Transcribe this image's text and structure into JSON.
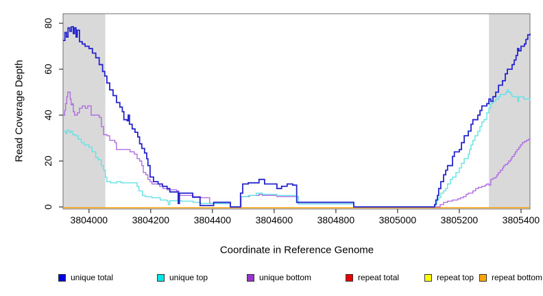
{
  "y_axis": {
    "label": "Read Coverage Depth",
    "ticks": [
      0,
      20,
      40,
      60,
      80
    ],
    "range": [
      0,
      84.2
    ]
  },
  "x_axis": {
    "label": "Coordinate in Reference Genome",
    "ticks": [
      3804000,
      3804200,
      3804400,
      3804600,
      3804800,
      3805000,
      3805200,
      3805400
    ],
    "range": [
      3803916,
      3805429
    ]
  },
  "shaded_regions": {
    "color": "#d9d9d9",
    "bands": [
      [
        3803916,
        3804053
      ],
      [
        3805296,
        3805429
      ]
    ]
  },
  "legend": {
    "items": [
      {
        "label": "unique total",
        "swatch": "#0000e0",
        "line": "#2424cf"
      },
      {
        "label": "unique top",
        "swatch": "#00e6e6",
        "line": "#62e2e6"
      },
      {
        "label": "unique bottom",
        "swatch": "#9a32cd",
        "line": "#b06ce2"
      },
      {
        "label": "repeat total",
        "swatch": "#e60000",
        "line": "#dd0000"
      },
      {
        "label": "repeat top",
        "swatch": "#ffff00",
        "line": "#ffee00"
      },
      {
        "label": "repeat bottom",
        "swatch": "#ffa500",
        "line": "#ff9d00"
      }
    ]
  },
  "chart_data": {
    "type": "line",
    "step": true,
    "title": "",
    "xlabel": "Coordinate in Reference Genome",
    "ylabel": "Read Coverage Depth",
    "ylim": [
      0,
      84
    ],
    "xlim": [
      3803916,
      3805429
    ],
    "grid": false,
    "legend_position": "bottom",
    "draw_order": [
      "repeat total",
      "repeat top",
      "repeat bottom",
      "unique bottom",
      "unique top",
      "unique total"
    ],
    "series": [
      {
        "name": "unique total",
        "color": "#2424cf",
        "width": 1.8,
        "points": [
          [
            3803916,
            72.5
          ],
          [
            3803922,
            76
          ],
          [
            3803927,
            74
          ],
          [
            3803932,
            78
          ],
          [
            3803938,
            76.5
          ],
          [
            3803943,
            78.5
          ],
          [
            3803949,
            75.5
          ],
          [
            3803953,
            78
          ],
          [
            3803958,
            74
          ],
          [
            3803962,
            77
          ],
          [
            3803969,
            72
          ],
          [
            3803978,
            71
          ],
          [
            3803987,
            70
          ],
          [
            3804000,
            69
          ],
          [
            3804011,
            67
          ],
          [
            3804022,
            65
          ],
          [
            3804033,
            62
          ],
          [
            3804044,
            59
          ],
          [
            3804051,
            57
          ],
          [
            3804058,
            54
          ],
          [
            3804067,
            51
          ],
          [
            3804078,
            48.5
          ],
          [
            3804089,
            45.5
          ],
          [
            3804100,
            43.5
          ],
          [
            3804108,
            41.5
          ],
          [
            3804113,
            38
          ],
          [
            3804124,
            37.5
          ],
          [
            3804127,
            40
          ],
          [
            3804131,
            36
          ],
          [
            3804140,
            34
          ],
          [
            3804149,
            32.5
          ],
          [
            3804158,
            30.5
          ],
          [
            3804164,
            27.5
          ],
          [
            3804171,
            25.5
          ],
          [
            3804180,
            23.5
          ],
          [
            3804187,
            21
          ],
          [
            3804191,
            18
          ],
          [
            3804198,
            13
          ],
          [
            3804209,
            11
          ],
          [
            3804224,
            10
          ],
          [
            3804238,
            9
          ],
          [
            3804253,
            8
          ],
          [
            3804262,
            6.5
          ],
          [
            3804289,
            1.5
          ],
          [
            3804293,
            6
          ],
          [
            3804336,
            4.2
          ],
          [
            3804360,
            0.6
          ],
          [
            3804404,
            2
          ],
          [
            3804458,
            0
          ],
          [
            3804491,
            6
          ],
          [
            3804498,
            10
          ],
          [
            3804516,
            10.5
          ],
          [
            3804551,
            12
          ],
          [
            3804569,
            10
          ],
          [
            3804609,
            8
          ],
          [
            3804624,
            9
          ],
          [
            3804642,
            10
          ],
          [
            3804660,
            9.5
          ],
          [
            3804673,
            2
          ],
          [
            3804858,
            0
          ],
          [
            3805120,
            1
          ],
          [
            3805124,
            3
          ],
          [
            3805129,
            5
          ],
          [
            3805133,
            8
          ],
          [
            3805140,
            11
          ],
          [
            3805149,
            14
          ],
          [
            3805156,
            16
          ],
          [
            3805162,
            18
          ],
          [
            3805178,
            22
          ],
          [
            3805184,
            24
          ],
          [
            3805200,
            25
          ],
          [
            3805207,
            28
          ],
          [
            3805216,
            31
          ],
          [
            3805229,
            33
          ],
          [
            3805238,
            36
          ],
          [
            3805244,
            38
          ],
          [
            3805260,
            40
          ],
          [
            3805267,
            42
          ],
          [
            3805273,
            44
          ],
          [
            3805289,
            45
          ],
          [
            3805296,
            47
          ],
          [
            3805302,
            46
          ],
          [
            3805309,
            48
          ],
          [
            3805318,
            50
          ],
          [
            3805327,
            53
          ],
          [
            3805340,
            55
          ],
          [
            3805349,
            58
          ],
          [
            3805356,
            60
          ],
          [
            3805371,
            62
          ],
          [
            3805378,
            64
          ],
          [
            3805384,
            66
          ],
          [
            3805389,
            69
          ],
          [
            3805393,
            68
          ],
          [
            3805400,
            70
          ],
          [
            3805411,
            71
          ],
          [
            3805416,
            73
          ],
          [
            3805422,
            75
          ],
          [
            3805429,
            75.5
          ]
        ]
      },
      {
        "name": "unique top",
        "color": "#62e2e6",
        "width": 1.4,
        "points": [
          [
            3803916,
            33
          ],
          [
            3803924,
            32
          ],
          [
            3803929,
            33.5
          ],
          [
            3803936,
            32.5
          ],
          [
            3803942,
            33
          ],
          [
            3803947,
            31.5
          ],
          [
            3803955,
            31
          ],
          [
            3803965,
            29.5
          ],
          [
            3803975,
            28
          ],
          [
            3803985,
            27
          ],
          [
            3804000,
            26
          ],
          [
            3804010,
            24
          ],
          [
            3804022,
            21.5
          ],
          [
            3804030,
            20.5
          ],
          [
            3804040,
            18
          ],
          [
            3804047,
            16
          ],
          [
            3804053,
            13
          ],
          [
            3804058,
            11
          ],
          [
            3804070,
            10.5
          ],
          [
            3804090,
            11
          ],
          [
            3804104,
            10.5
          ],
          [
            3804149,
            10.5
          ],
          [
            3804156,
            9
          ],
          [
            3804162,
            7
          ],
          [
            3804173,
            5
          ],
          [
            3804182,
            4.5
          ],
          [
            3804204,
            4
          ],
          [
            3804231,
            3
          ],
          [
            3804253,
            2.5
          ],
          [
            3804257,
            1
          ],
          [
            3804262,
            2.7
          ],
          [
            3804300,
            2.5
          ],
          [
            3804338,
            2
          ],
          [
            3804362,
            1.5
          ],
          [
            3804458,
            0
          ],
          [
            3804491,
            4.5
          ],
          [
            3804516,
            5
          ],
          [
            3804542,
            6
          ],
          [
            3804562,
            5.5
          ],
          [
            3804609,
            5
          ],
          [
            3804669,
            4.5
          ],
          [
            3804678,
            1.3
          ],
          [
            3804858,
            0
          ],
          [
            3805122,
            1
          ],
          [
            3805127,
            3
          ],
          [
            3805133,
            4
          ],
          [
            3805140,
            6
          ],
          [
            3805149,
            7
          ],
          [
            3805156,
            8
          ],
          [
            3805162,
            10
          ],
          [
            3805171,
            12
          ],
          [
            3805178,
            13
          ],
          [
            3805189,
            15
          ],
          [
            3805200,
            17
          ],
          [
            3805207,
            19
          ],
          [
            3805216,
            21
          ],
          [
            3805229,
            23
          ],
          [
            3805233,
            25
          ],
          [
            3805238,
            27
          ],
          [
            3805244,
            29
          ],
          [
            3805251,
            31
          ],
          [
            3805260,
            33
          ],
          [
            3805267,
            35
          ],
          [
            3805273,
            37
          ],
          [
            3805280,
            38
          ],
          [
            3805289,
            41
          ],
          [
            3805296,
            43
          ],
          [
            3805302,
            45
          ],
          [
            3805309,
            46
          ],
          [
            3805318,
            47
          ],
          [
            3805327,
            48
          ],
          [
            3805333,
            49
          ],
          [
            3805351,
            50
          ],
          [
            3805356,
            51
          ],
          [
            3805360,
            50
          ],
          [
            3805367,
            49
          ],
          [
            3805371,
            48
          ],
          [
            3805389,
            46
          ],
          [
            3805393,
            48
          ],
          [
            3805409,
            47
          ],
          [
            3805429,
            46.5
          ]
        ]
      },
      {
        "name": "unique bottom",
        "color": "#b06ce2",
        "width": 1.4,
        "points": [
          [
            3803916,
            40
          ],
          [
            3803921,
            42
          ],
          [
            3803924,
            45
          ],
          [
            3803928,
            48
          ],
          [
            3803931,
            50
          ],
          [
            3803939,
            47
          ],
          [
            3803942,
            44.5
          ],
          [
            3803946,
            45
          ],
          [
            3803949,
            41.5
          ],
          [
            3803953,
            40
          ],
          [
            3803962,
            41
          ],
          [
            3803969,
            43
          ],
          [
            3803978,
            44
          ],
          [
            3803988,
            43
          ],
          [
            3803996,
            44
          ],
          [
            3804007,
            40
          ],
          [
            3804033,
            39
          ],
          [
            3804040,
            35
          ],
          [
            3804047,
            31.5
          ],
          [
            3804058,
            31
          ],
          [
            3804067,
            29
          ],
          [
            3804084,
            28
          ],
          [
            3804089,
            25
          ],
          [
            3804124,
            25
          ],
          [
            3804133,
            24
          ],
          [
            3804147,
            23
          ],
          [
            3804156,
            21
          ],
          [
            3804164,
            20
          ],
          [
            3804171,
            18
          ],
          [
            3804176,
            15
          ],
          [
            3804184,
            14
          ],
          [
            3804191,
            12
          ],
          [
            3804198,
            11
          ],
          [
            3804204,
            10
          ],
          [
            3804229,
            9
          ],
          [
            3804240,
            8
          ],
          [
            3804253,
            7.5
          ],
          [
            3804284,
            7
          ],
          [
            3804291,
            5
          ],
          [
            3804338,
            4.5
          ],
          [
            3804362,
            4
          ],
          [
            3804391,
            1.5
          ],
          [
            3804458,
            0
          ],
          [
            3804493,
            4.5
          ],
          [
            3804520,
            5
          ],
          [
            3804551,
            5.5
          ],
          [
            3804562,
            5
          ],
          [
            3804609,
            4.5
          ],
          [
            3804678,
            1.3
          ],
          [
            3804858,
            0
          ],
          [
            3805138,
            1
          ],
          [
            3805149,
            2
          ],
          [
            3805162,
            2.5
          ],
          [
            3805178,
            3
          ],
          [
            3805195,
            3.5
          ],
          [
            3805204,
            4
          ],
          [
            3805213,
            4.5
          ],
          [
            3805222,
            5.5
          ],
          [
            3805229,
            6
          ],
          [
            3805244,
            7
          ],
          [
            3805253,
            8
          ],
          [
            3805262,
            8.5
          ],
          [
            3805273,
            9
          ],
          [
            3805284,
            9.5
          ],
          [
            3805289,
            10
          ],
          [
            3805296,
            9.5
          ],
          [
            3805302,
            12
          ],
          [
            3805309,
            12.5
          ],
          [
            3805318,
            13
          ],
          [
            3805322,
            14
          ],
          [
            3805327,
            15
          ],
          [
            3805333,
            16
          ],
          [
            3805340,
            17
          ],
          [
            3805344,
            18
          ],
          [
            3805349,
            18.5
          ],
          [
            3805356,
            19
          ],
          [
            3805360,
            20
          ],
          [
            3805367,
            21
          ],
          [
            3805371,
            22
          ],
          [
            3805378,
            23
          ],
          [
            3805382,
            24
          ],
          [
            3805387,
            25
          ],
          [
            3805393,
            26
          ],
          [
            3805398,
            27
          ],
          [
            3805404,
            28
          ],
          [
            3805411,
            28.5
          ],
          [
            3805418,
            29
          ],
          [
            3805424,
            29.5
          ],
          [
            3805429,
            30
          ]
        ]
      },
      {
        "name": "repeat total",
        "color": "#dd0000",
        "width": 1.2,
        "points": [
          [
            3803916,
            0
          ],
          [
            3805429,
            0
          ]
        ]
      },
      {
        "name": "repeat top",
        "color": "#ffee00",
        "width": 1.2,
        "points": [
          [
            3803916,
            0
          ],
          [
            3805429,
            0
          ]
        ]
      },
      {
        "name": "repeat bottom",
        "color": "#ff9d00",
        "width": 1.5,
        "points": [
          [
            3803916,
            0
          ],
          [
            3805429,
            0
          ]
        ]
      }
    ]
  }
}
